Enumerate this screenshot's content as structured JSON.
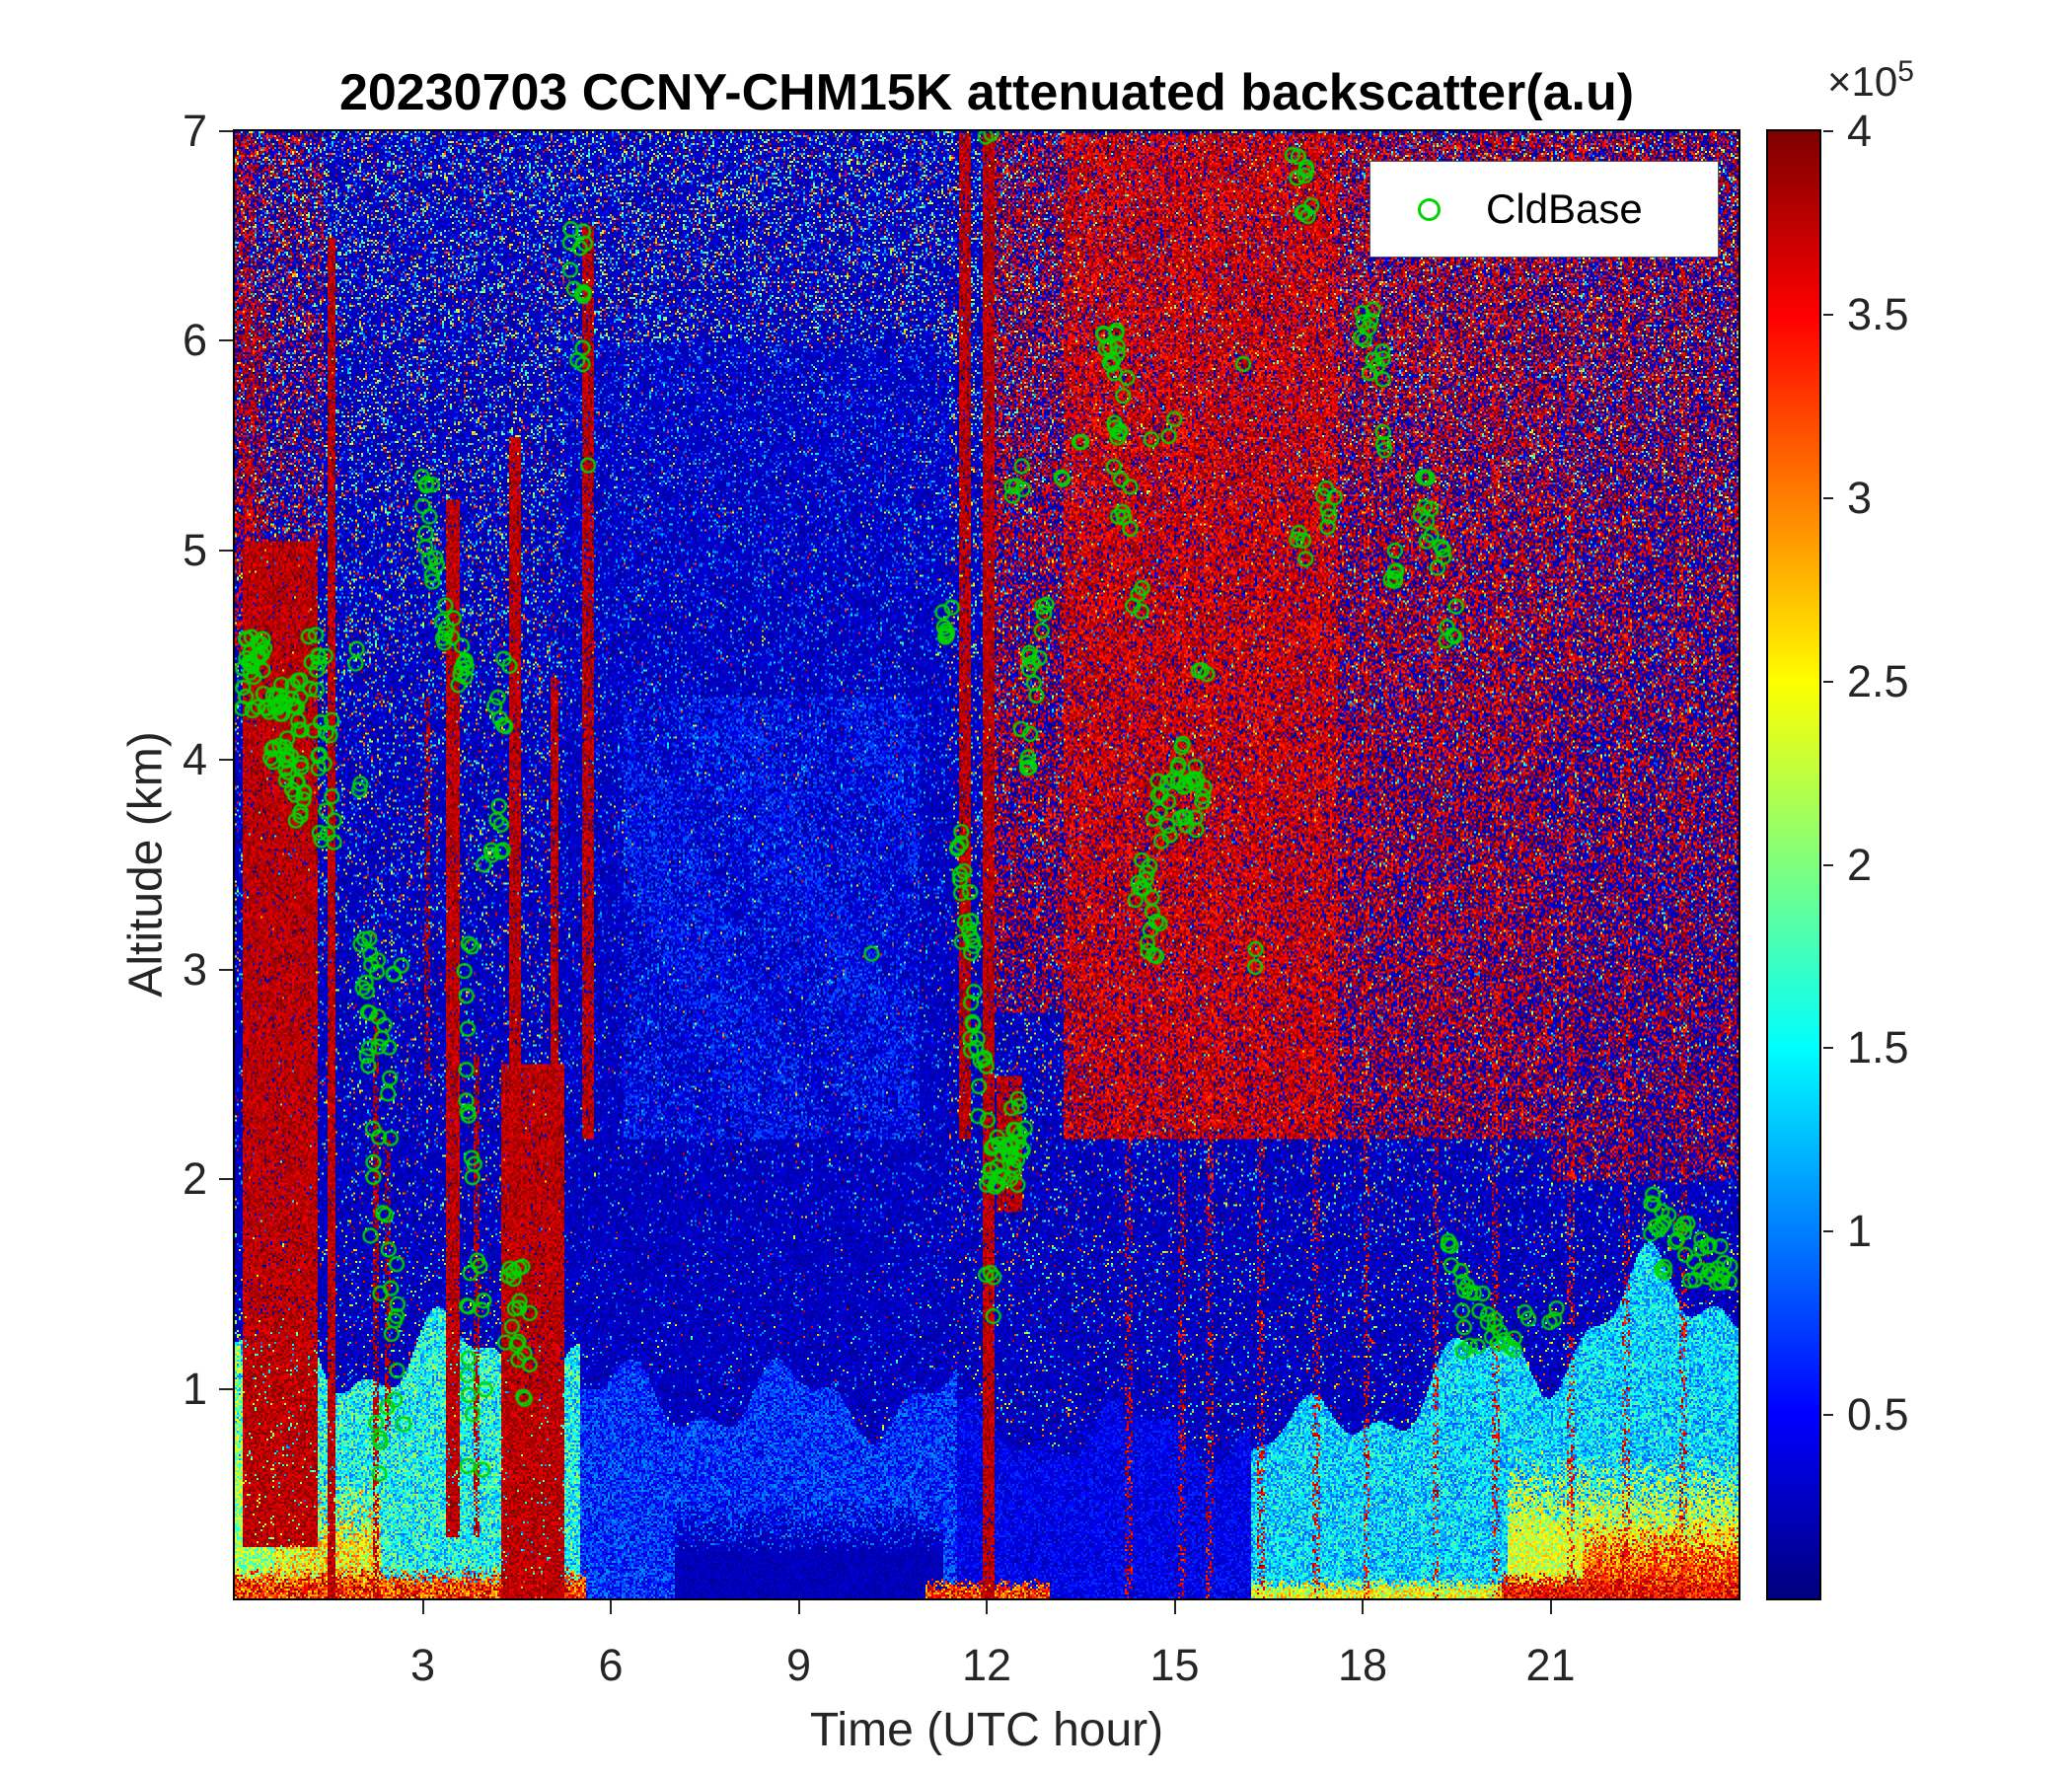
{
  "chart_data": {
    "type": "heatmap",
    "title": "20230703 CCNY-CHM15K attenuated backscatter(a.u)",
    "xlabel": "Time (UTC hour)",
    "ylabel": "Altitude (km)",
    "x_range": [
      0,
      24
    ],
    "y_range": [
      0,
      7
    ],
    "x_ticks": [
      3,
      6,
      9,
      12,
      15,
      18,
      21
    ],
    "y_ticks": [
      1,
      2,
      3,
      4,
      5,
      6,
      7
    ],
    "colormap": "jet",
    "value_unit": "a.u.",
    "value_range_scaled": [
      0,
      4
    ],
    "colorbar_ticks": [
      0.5,
      1,
      1.5,
      2,
      2.5,
      3,
      3.5,
      4
    ],
    "colorbar_multiplier_base": "×10",
    "colorbar_multiplier_exp": "5",
    "legend_label": "CldBase",
    "cloud_base_color": "#00d300",
    "field_regions": {
      "solid_cloud_columns": [
        {
          "t": [
            0.12,
            1.32
          ],
          "z": [
            0.25,
            5.05
          ],
          "density": 0.95
        },
        {
          "t": [
            0.1,
            0.5
          ],
          "z": [
            5.0,
            6.2
          ],
          "density": 0.35
        },
        {
          "t": [
            1.48,
            1.6
          ],
          "z": [
            0.0,
            6.5
          ],
          "density": 0.95
        },
        {
          "t": [
            2.18,
            2.28
          ],
          "z": [
            0.0,
            2.8
          ],
          "density": 0.55
        },
        {
          "t": [
            2.38,
            2.46
          ],
          "z": [
            0.8,
            2.2
          ],
          "density": 0.5
        },
        {
          "t": [
            3.02,
            3.1
          ],
          "z": [
            2.5,
            4.3
          ],
          "density": 0.5
        },
        {
          "t": [
            3.34,
            3.58
          ],
          "z": [
            0.3,
            5.25
          ],
          "density": 0.95
        },
        {
          "t": [
            3.8,
            3.9
          ],
          "z": [
            0.3,
            2.6
          ],
          "density": 0.65
        },
        {
          "t": [
            4.25,
            5.25
          ],
          "z": [
            0.0,
            2.55
          ],
          "density": 0.95
        },
        {
          "t": [
            4.36,
            4.54
          ],
          "z": [
            0.0,
            5.55
          ],
          "density": 0.95
        },
        {
          "t": [
            5.02,
            5.16
          ],
          "z": [
            0.0,
            4.4
          ],
          "density": 0.9
        },
        {
          "t": [
            5.54,
            5.72
          ],
          "z": [
            2.2,
            6.55
          ],
          "density": 0.9
        },
        {
          "t": [
            11.54,
            11.72
          ],
          "z": [
            2.2,
            7.0
          ],
          "density": 0.9
        },
        {
          "t": [
            11.92,
            12.12
          ],
          "z": [
            0.0,
            7.0
          ],
          "density": 0.95
        },
        {
          "t": [
            12.15,
            12.55
          ],
          "z": [
            1.85,
            2.5
          ],
          "density": 0.9
        }
      ],
      "red_speckle_zones": [
        {
          "t": [
            0.0,
            0.3
          ],
          "z": [
            4.5,
            7.0
          ],
          "prob": 0.5
        },
        {
          "t": [
            0.3,
            1.4
          ],
          "z": [
            5.0,
            7.0
          ],
          "prob": 0.25
        },
        {
          "t": [
            12.1,
            13.2
          ],
          "z": [
            2.8,
            7.0
          ],
          "prob": 0.45
        },
        {
          "t": [
            13.2,
            17.6
          ],
          "z": [
            2.2,
            7.0
          ],
          "prob": 0.78
        },
        {
          "t": [
            17.6,
            21.0
          ],
          "z": [
            2.2,
            7.0
          ],
          "prob": 0.5
        },
        {
          "t": [
            21.0,
            24.0
          ],
          "z": [
            2.0,
            7.0
          ],
          "prob": 0.38
        }
      ],
      "faint_red_streak_hours": [
        14.25,
        15.1,
        15.55,
        16.35,
        17.25,
        18.05,
        19.15,
        20.1,
        21.3,
        22.2,
        23.1
      ],
      "boundary_layer": [
        {
          "t": [
            0.0,
            5.5
          ],
          "top": 1.15,
          "v": [
            0.9,
            2.2
          ]
        },
        {
          "t": [
            5.5,
            11.5
          ],
          "top": 0.95,
          "v": [
            0.25,
            1.1
          ]
        },
        {
          "t": [
            11.5,
            16.2
          ],
          "top": 0.8,
          "v": [
            0.15,
            0.7
          ]
        },
        {
          "t": [
            16.2,
            24.0
          ],
          "top": 1.55,
          "v": [
            0.8,
            1.9
          ],
          "grow": true
        }
      ],
      "surface_hot_strips": [
        {
          "t": [
            0.0,
            0.6
          ],
          "z": 1.1,
          "v": [
            1.6,
            2.6
          ]
        },
        {
          "t": [
            0.6,
            2.3
          ],
          "z": 0.45,
          "v": [
            1.8,
            3.2
          ]
        },
        {
          "t": [
            0.0,
            5.6
          ],
          "z": 0.12,
          "v": [
            2.6,
            4.0
          ]
        },
        {
          "t": [
            11.0,
            13.0
          ],
          "z": 0.08,
          "v": [
            2.6,
            4.0
          ]
        },
        {
          "t": [
            16.2,
            20.2
          ],
          "z": 0.08,
          "v": [
            1.8,
            3.0
          ]
        },
        {
          "t": [
            20.3,
            24.0
          ],
          "z": 0.55,
          "v": [
            1.9,
            2.8
          ]
        },
        {
          "t": [
            21.5,
            24.0
          ],
          "z": 0.3,
          "v": [
            2.6,
            3.8
          ]
        },
        {
          "t": [
            20.2,
            24.0
          ],
          "z": 0.1,
          "v": [
            3.0,
            4.0
          ]
        }
      ],
      "midlevel_wisps": {
        "t": [
          6.2,
          10.9
        ],
        "z": [
          2.2,
          4.3
        ],
        "prob": 0.5,
        "v": [
          0.45,
          0.95
        ]
      },
      "dark_surface_band": {
        "t": [
          7.0,
          11.3
        ],
        "z": 0.35,
        "v": [
          0.1,
          0.35
        ]
      },
      "clean_mid_zone": {
        "t": [
          5.2,
          11.4
        ],
        "z": [
          0.9,
          6.0
        ]
      }
    },
    "cloud_base_clusters": [
      [
        0.1,
        0.55,
        4.2,
        4.62,
        22
      ],
      [
        0.15,
        0.45,
        4.45,
        4.6,
        8
      ],
      [
        0.5,
        1.05,
        4.15,
        4.4,
        20
      ],
      [
        0.55,
        1.1,
        3.95,
        4.15,
        16
      ],
      [
        0.8,
        1.15,
        3.7,
        3.95,
        12
      ],
      [
        1.15,
        1.5,
        4.3,
        4.6,
        10
      ],
      [
        1.25,
        1.55,
        3.95,
        4.2,
        9
      ],
      [
        1.35,
        1.6,
        3.6,
        3.85,
        7
      ],
      [
        1.85,
        2.0,
        4.45,
        4.55,
        2
      ],
      [
        1.95,
        2.1,
        3.85,
        3.95,
        2
      ],
      [
        2.0,
        2.3,
        2.8,
        3.15,
        10
      ],
      [
        2.1,
        2.5,
        2.35,
        2.8,
        12
      ],
      [
        2.15,
        2.6,
        1.55,
        2.25,
        10
      ],
      [
        2.25,
        2.7,
        0.55,
        1.5,
        14
      ],
      [
        2.5,
        2.7,
        2.9,
        3.05,
        3
      ],
      [
        2.9,
        3.15,
        5.15,
        5.4,
        6
      ],
      [
        3.0,
        3.25,
        4.85,
        5.1,
        7
      ],
      [
        3.3,
        3.5,
        4.55,
        4.8,
        8
      ],
      [
        3.45,
        3.7,
        4.35,
        4.6,
        9
      ],
      [
        3.55,
        3.8,
        2.85,
        3.2,
        4
      ],
      [
        3.6,
        3.95,
        1.9,
        2.8,
        8
      ],
      [
        3.65,
        4.0,
        0.55,
        1.9,
        14
      ],
      [
        3.95,
        4.3,
        3.45,
        3.8,
        8
      ],
      [
        4.1,
        4.4,
        4.15,
        4.5,
        7
      ],
      [
        4.25,
        4.6,
        1.15,
        1.75,
        10
      ],
      [
        4.45,
        4.8,
        0.85,
        1.6,
        9
      ],
      [
        5.35,
        5.6,
        6.2,
        6.55,
        10
      ],
      [
        5.45,
        5.6,
        5.85,
        6.0,
        3
      ],
      [
        5.55,
        5.68,
        5.35,
        5.45,
        1
      ],
      [
        10.15,
        10.25,
        3.0,
        3.1,
        1
      ],
      [
        11.25,
        11.5,
        4.55,
        4.8,
        7
      ],
      [
        11.45,
        11.65,
        3.35,
        3.7,
        8
      ],
      [
        11.55,
        11.8,
        3.0,
        3.4,
        10
      ],
      [
        11.65,
        11.9,
        2.55,
        3.0,
        8
      ],
      [
        11.85,
        12.1,
        2.25,
        2.6,
        7
      ],
      [
        11.95,
        12.1,
        6.85,
        7.0,
        2
      ],
      [
        11.95,
        12.2,
        1.3,
        1.8,
        4
      ],
      [
        12.0,
        12.5,
        1.95,
        2.2,
        26
      ],
      [
        12.3,
        12.65,
        2.1,
        2.4,
        12
      ],
      [
        12.5,
        12.75,
        3.95,
        4.2,
        6
      ],
      [
        12.6,
        12.85,
        4.3,
        4.55,
        7
      ],
      [
        12.4,
        12.6,
        5.25,
        5.45,
        5
      ],
      [
        12.8,
        13.0,
        4.55,
        4.75,
        4
      ],
      [
        13.15,
        13.3,
        5.3,
        5.4,
        2
      ],
      [
        13.45,
        13.6,
        5.45,
        5.55,
        2
      ],
      [
        13.85,
        14.1,
        5.85,
        6.05,
        9
      ],
      [
        13.95,
        14.25,
        5.35,
        5.9,
        11
      ],
      [
        14.05,
        14.3,
        5.05,
        5.35,
        6
      ],
      [
        14.3,
        14.5,
        4.65,
        4.9,
        4
      ],
      [
        14.35,
        14.65,
        3.25,
        3.55,
        9
      ],
      [
        14.5,
        14.8,
        3.05,
        3.3,
        8
      ],
      [
        14.6,
        15.0,
        5.5,
        5.8,
        3
      ],
      [
        14.65,
        15.0,
        3.55,
        3.9,
        10
      ],
      [
        14.85,
        15.2,
        3.85,
        4.1,
        9
      ],
      [
        15.05,
        15.35,
        3.65,
        3.9,
        7
      ],
      [
        15.2,
        15.5,
        3.75,
        4.0,
        8
      ],
      [
        15.35,
        15.55,
        4.3,
        4.45,
        3
      ],
      [
        15.9,
        16.1,
        5.85,
        5.95,
        1
      ],
      [
        16.15,
        16.3,
        3.0,
        3.1,
        2
      ],
      [
        16.85,
        17.1,
        6.75,
        6.95,
        6
      ],
      [
        17.0,
        17.2,
        6.55,
        6.75,
        4
      ],
      [
        16.9,
        17.1,
        4.95,
        5.1,
        4
      ],
      [
        17.35,
        17.6,
        5.1,
        5.3,
        6
      ],
      [
        17.95,
        18.2,
        5.95,
        6.15,
        7
      ],
      [
        18.1,
        18.35,
        5.75,
        5.95,
        6
      ],
      [
        18.2,
        18.4,
        5.45,
        5.6,
        3
      ],
      [
        18.35,
        18.6,
        4.85,
        5.05,
        6
      ],
      [
        18.85,
        19.1,
        5.15,
        5.35,
        6
      ],
      [
        19.0,
        19.3,
        4.9,
        5.15,
        7
      ],
      [
        19.3,
        19.5,
        4.55,
        4.75,
        5
      ],
      [
        19.35,
        19.6,
        1.5,
        1.75,
        6
      ],
      [
        19.55,
        19.95,
        1.15,
        1.5,
        11
      ],
      [
        19.95,
        20.45,
        1.15,
        1.4,
        11
      ],
      [
        20.5,
        20.7,
        1.3,
        1.4,
        2
      ],
      [
        20.9,
        21.15,
        1.25,
        1.45,
        3
      ],
      [
        22.55,
        22.9,
        1.7,
        1.95,
        9
      ],
      [
        22.75,
        23.2,
        1.55,
        1.8,
        11
      ],
      [
        23.15,
        23.6,
        1.5,
        1.72,
        11
      ],
      [
        23.55,
        23.95,
        1.45,
        1.68,
        9
      ]
    ]
  }
}
